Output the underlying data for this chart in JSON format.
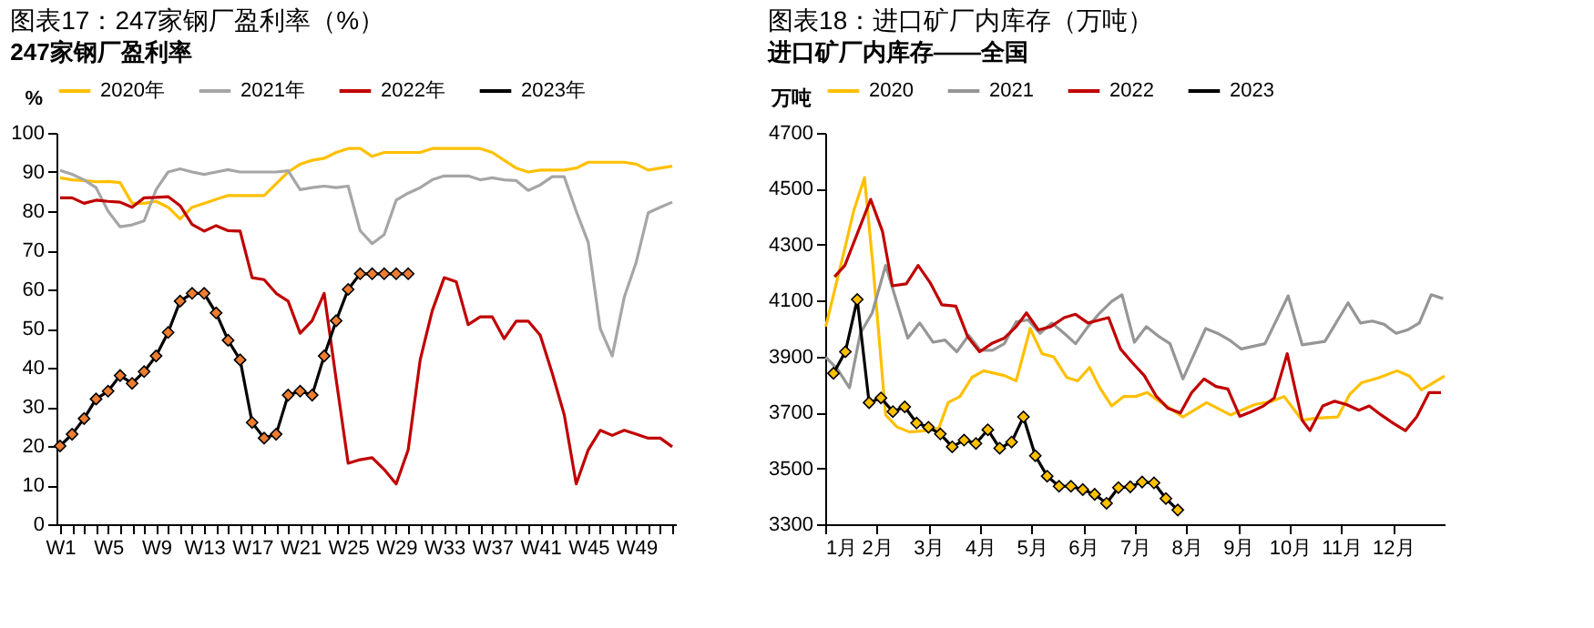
{
  "chart_data": [
    {
      "type": "line",
      "title": "图表17：247家钢厂盈利率（%）",
      "subtitle": "247家钢厂盈利率",
      "ylabel": "%",
      "legend": "top",
      "grid": false,
      "categories": [
        "W1",
        null,
        null,
        null,
        "W5",
        null,
        null,
        null,
        "W9",
        null,
        null,
        null,
        "W13",
        null,
        null,
        null,
        "W17",
        null,
        null,
        null,
        "W21",
        null,
        null,
        null,
        "W25",
        null,
        null,
        null,
        "W29",
        null,
        null,
        null,
        "W33",
        null,
        null,
        null,
        "W37",
        null,
        null,
        null,
        "W41",
        null,
        null,
        null,
        "W45",
        null,
        null,
        null,
        "W49",
        null,
        null,
        null
      ],
      "ylim": [
        0,
        100
      ],
      "yticks": [
        0,
        10,
        20,
        30,
        40,
        50,
        60,
        70,
        80,
        90,
        100
      ],
      "series": [
        {
          "name": "2020年",
          "color": "#ffc000",
          "values": [
            88.5,
            88,
            87.8,
            87.5,
            87.6,
            87.3,
            82,
            82,
            82.5,
            81,
            78,
            81,
            82,
            83,
            84,
            84,
            84,
            84,
            87,
            90,
            92,
            93,
            93.5,
            95,
            96,
            96,
            94,
            95,
            95,
            95,
            95,
            96,
            96,
            96,
            96,
            96,
            95,
            93,
            91,
            90,
            90.5,
            90.5,
            90.5,
            91,
            92.5,
            92.5,
            92.5,
            92.5,
            92,
            90.5,
            91,
            91.5
          ]
        },
        {
          "name": "2021年",
          "color": "#a6a6a6",
          "values": [
            90.4,
            89.4,
            88,
            86,
            80,
            76,
            76.5,
            77.5,
            85.5,
            90,
            90.8,
            90,
            89.4,
            90,
            90.6,
            90,
            90,
            90,
            90,
            90.3,
            85.5,
            86,
            86.4,
            86,
            86.4,
            75,
            71.7,
            74,
            82.8,
            84.6,
            86,
            88,
            89,
            89,
            89,
            88,
            88.5,
            88,
            87.8,
            85.3,
            86.7,
            88.8,
            88.8,
            80,
            72,
            50,
            43,
            58,
            67,
            79.6,
            81,
            82.3
          ]
        },
        {
          "name": "2022年",
          "color": "#c00000",
          "values": [
            83.4,
            83.4,
            82,
            82.8,
            82.5,
            82.3,
            81,
            83.4,
            83.5,
            83.7,
            81.4,
            76.6,
            74.9,
            76.3,
            75,
            74.9,
            63,
            62.5,
            59,
            57,
            48.8,
            52,
            59,
            37,
            15.6,
            16.5,
            17,
            14,
            10.3,
            19,
            42,
            54.5,
            63,
            62,
            51,
            53,
            53,
            47.4,
            51.9,
            51.9,
            48.3,
            38.6,
            28,
            10.3,
            19,
            24,
            22.7,
            24,
            23,
            22,
            22,
            19.8
          ]
        },
        {
          "name": "2023年",
          "color": "#000000",
          "marker": "diamond",
          "colors": [
            "#ed7d31",
            "#ed7d31",
            "#ed7d31",
            "#ed7d31",
            "#ed7d31",
            "#ed7d31",
            "#ed7d31",
            "#ed7d31",
            "#ed7d31",
            "#ed7d31",
            "#ed7d31",
            "#ed7d31",
            "#ed7d31",
            "#ed7d31",
            "#ed7d31",
            "#ed7d31",
            "#ed7d31",
            "#ed7d31",
            "#ed7d31",
            "#ed7d31",
            "#ed7d31",
            "#ed7d31",
            "#ed7d31",
            "#ed7d31",
            "#ed7d31",
            "#ed7d31",
            "#ed7d31",
            "#ed7d31",
            "#ed7d31",
            "#ed7d31",
            null,
            null,
            null,
            null,
            null,
            null,
            null,
            null,
            null,
            null,
            null,
            null,
            null,
            null,
            null,
            null,
            null,
            null,
            null,
            null,
            null,
            null
          ],
          "values": [
            20,
            23,
            27,
            32,
            34,
            38,
            36,
            39,
            43,
            49,
            57,
            59,
            59,
            54,
            47,
            42,
            26,
            22,
            23,
            33,
            34,
            33,
            43,
            52,
            60,
            64,
            64,
            64,
            64,
            64,
            null,
            null,
            null,
            null,
            null,
            null,
            null,
            null,
            null,
            null,
            null,
            null,
            null,
            null,
            null,
            null,
            null,
            null,
            null,
            null,
            null,
            null
          ]
        }
      ]
    },
    {
      "type": "line",
      "title": "图表18：进口矿厂内库存（万吨）",
      "subtitle": "进口矿厂内库存——全国",
      "ylabel": "万吨",
      "legend": "top",
      "grid": false,
      "xlim": [
        1,
        13
      ],
      "xticks": [
        {
          "value": 1,
          "label": "1月"
        },
        {
          "value": 2,
          "label": "2月"
        },
        {
          "value": 3,
          "label": "3月"
        },
        {
          "value": 4,
          "label": "4月"
        },
        {
          "value": 5,
          "label": "5月"
        },
        {
          "value": 6,
          "label": "6月"
        },
        {
          "value": 7,
          "label": "7月"
        },
        {
          "value": 8,
          "label": "8月"
        },
        {
          "value": 9,
          "label": "9月"
        },
        {
          "value": 10,
          "label": "10月"
        },
        {
          "value": 11,
          "label": "11月"
        },
        {
          "value": 12,
          "label": "12月"
        }
      ],
      "ylim": [
        3300,
        4700
      ],
      "yticks": [
        3300,
        3500,
        3700,
        3900,
        4100,
        4300,
        4500,
        4700
      ],
      "series": [
        {
          "name": "2020",
          "color": "#ffc000",
          "x": [
            1.01,
            1.38,
            1.55,
            1.76,
            1.93,
            2.17,
            2.39,
            2.63,
            2.97,
            3.2,
            3.38,
            3.61,
            3.84,
            4.07,
            4.47,
            4.7,
            4.97,
            5.2,
            5.43,
            5.68,
            5.89,
            6.12,
            6.32,
            6.55,
            6.78,
            7.01,
            7.24,
            7.47,
            7.93,
            8.39,
            8.85,
            9.32,
            9.66,
            9.89,
            10.24,
            10.47,
            10.93,
            11.16,
            11.39,
            11.74,
            12.08,
            12.32,
            12.55,
            13.0
          ],
          "values": [
            4007,
            4287,
            4420,
            4540,
            4214,
            3691,
            3648,
            3630,
            3635,
            3643,
            3735,
            3757,
            3825,
            3849,
            3832,
            3813,
            4000,
            3910,
            3898,
            3825,
            3813,
            3861,
            3788,
            3723,
            3757,
            3757,
            3771,
            3740,
            3684,
            3735,
            3691,
            3728,
            3740,
            3757,
            3672,
            3679,
            3684,
            3764,
            3806,
            3825,
            3849,
            3830,
            3781,
            3830
          ]
        },
        {
          "name": "2021",
          "color": "#969696",
          "x": [
            1.01,
            1.24,
            1.47,
            1.68,
            1.91,
            2.17,
            2.39,
            2.6,
            2.83,
            3.09,
            3.32,
            3.55,
            3.78,
            4.01,
            4.24,
            4.47,
            4.7,
            4.93,
            5.16,
            5.39,
            5.63,
            5.85,
            6.09,
            6.32,
            6.55,
            6.75,
            6.99,
            7.22,
            7.47,
            7.68,
            7.93,
            8.37,
            8.6,
            8.83,
            9.06,
            9.52,
            9.97,
            10.24,
            10.68,
            11.13,
            11.37,
            11.6,
            11.83,
            12.06,
            12.28,
            12.51,
            12.74,
            12.97
          ],
          "values": [
            3898,
            3854,
            3788,
            3983,
            4056,
            4226,
            4092,
            3966,
            4020,
            3951,
            3959,
            3917,
            3976,
            3922,
            3922,
            3946,
            4024,
            4031,
            3983,
            4020,
            3983,
            3946,
            4007,
            4056,
            4097,
            4121,
            3951,
            4007,
            3971,
            3946,
            3820,
            4000,
            3983,
            3959,
            3927,
            3946,
            4117,
            3942,
            3954,
            4092,
            4020,
            4027,
            4015,
            3983,
            3995,
            4020,
            4121,
            4107
          ]
        },
        {
          "name": "2022",
          "color": "#c00000",
          "x": [
            1.18,
            1.38,
            1.88,
            2.11,
            2.3,
            2.57,
            2.8,
            3.03,
            3.26,
            3.53,
            3.76,
            3.99,
            4.22,
            4.47,
            4.7,
            4.9,
            5.13,
            5.37,
            5.63,
            5.85,
            6.09,
            6.32,
            6.49,
            6.72,
            6.95,
            7.18,
            7.41,
            7.64,
            7.88,
            8.1,
            8.34,
            8.57,
            8.8,
            9.03,
            9.26,
            9.49,
            9.7,
            9.95,
            10.24,
            10.39,
            10.64,
            10.87,
            11.1,
            11.34,
            11.54,
            11.77,
            12.0,
            12.24,
            12.46,
            12.7,
            12.93
          ],
          "values": [
            4185,
            4226,
            4462,
            4347,
            4153,
            4160,
            4226,
            4165,
            4085,
            4080,
            3971,
            3917,
            3946,
            3966,
            4007,
            4056,
            3995,
            4007,
            4039,
            4051,
            4020,
            4031,
            4039,
            3927,
            3878,
            3832,
            3759,
            3715,
            3698,
            3771,
            3820,
            3793,
            3784,
            3686,
            3703,
            3723,
            3752,
            3910,
            3672,
            3635,
            3723,
            3740,
            3728,
            3708,
            3723,
            3691,
            3662,
            3635,
            3684,
            3771,
            3771
          ]
        },
        {
          "name": "2023",
          "color": "#000000",
          "marker": "diamond",
          "colors": [
            "#ffc000",
            "#ffc000",
            "#ffc000",
            "#ffc000",
            "#ffc000",
            "#ffc000",
            "#ffc000",
            "#ffc000",
            "#ffc000",
            "#ffc000",
            "#ffc000",
            "#ffc000",
            "#ffc000",
            "#ffc000",
            "#ffc000",
            "#ffc000",
            "#ffc000",
            "#ffc000",
            "#ffc000",
            "#ffc000",
            "#ffc000",
            "#ffc000",
            "#ffc000",
            "#ffc000",
            "#ffc000",
            "#ffc000",
            "#ffc000",
            "#ffc000",
            "#ffc000",
            "#ffc000"
          ],
          "x": [
            1.16,
            1.39,
            1.62,
            1.85,
            2.08,
            2.31,
            2.54,
            2.77,
            3.0,
            3.23,
            3.46,
            3.69,
            3.92,
            4.15,
            4.38,
            4.61,
            4.84,
            5.07,
            5.3,
            5.53,
            5.76,
            5.99,
            6.22,
            6.45,
            6.68,
            6.91,
            7.14,
            7.37,
            7.6,
            7.83
          ],
          "values": [
            3840,
            3917,
            4104,
            3735,
            3752,
            3703,
            3720,
            3662,
            3647,
            3623,
            3577,
            3601,
            3589,
            3638,
            3572,
            3594,
            3684,
            3545,
            3472,
            3436,
            3436,
            3424,
            3407,
            3375,
            3431,
            3434,
            3451,
            3448,
            3392,
            3351
          ]
        }
      ]
    }
  ]
}
